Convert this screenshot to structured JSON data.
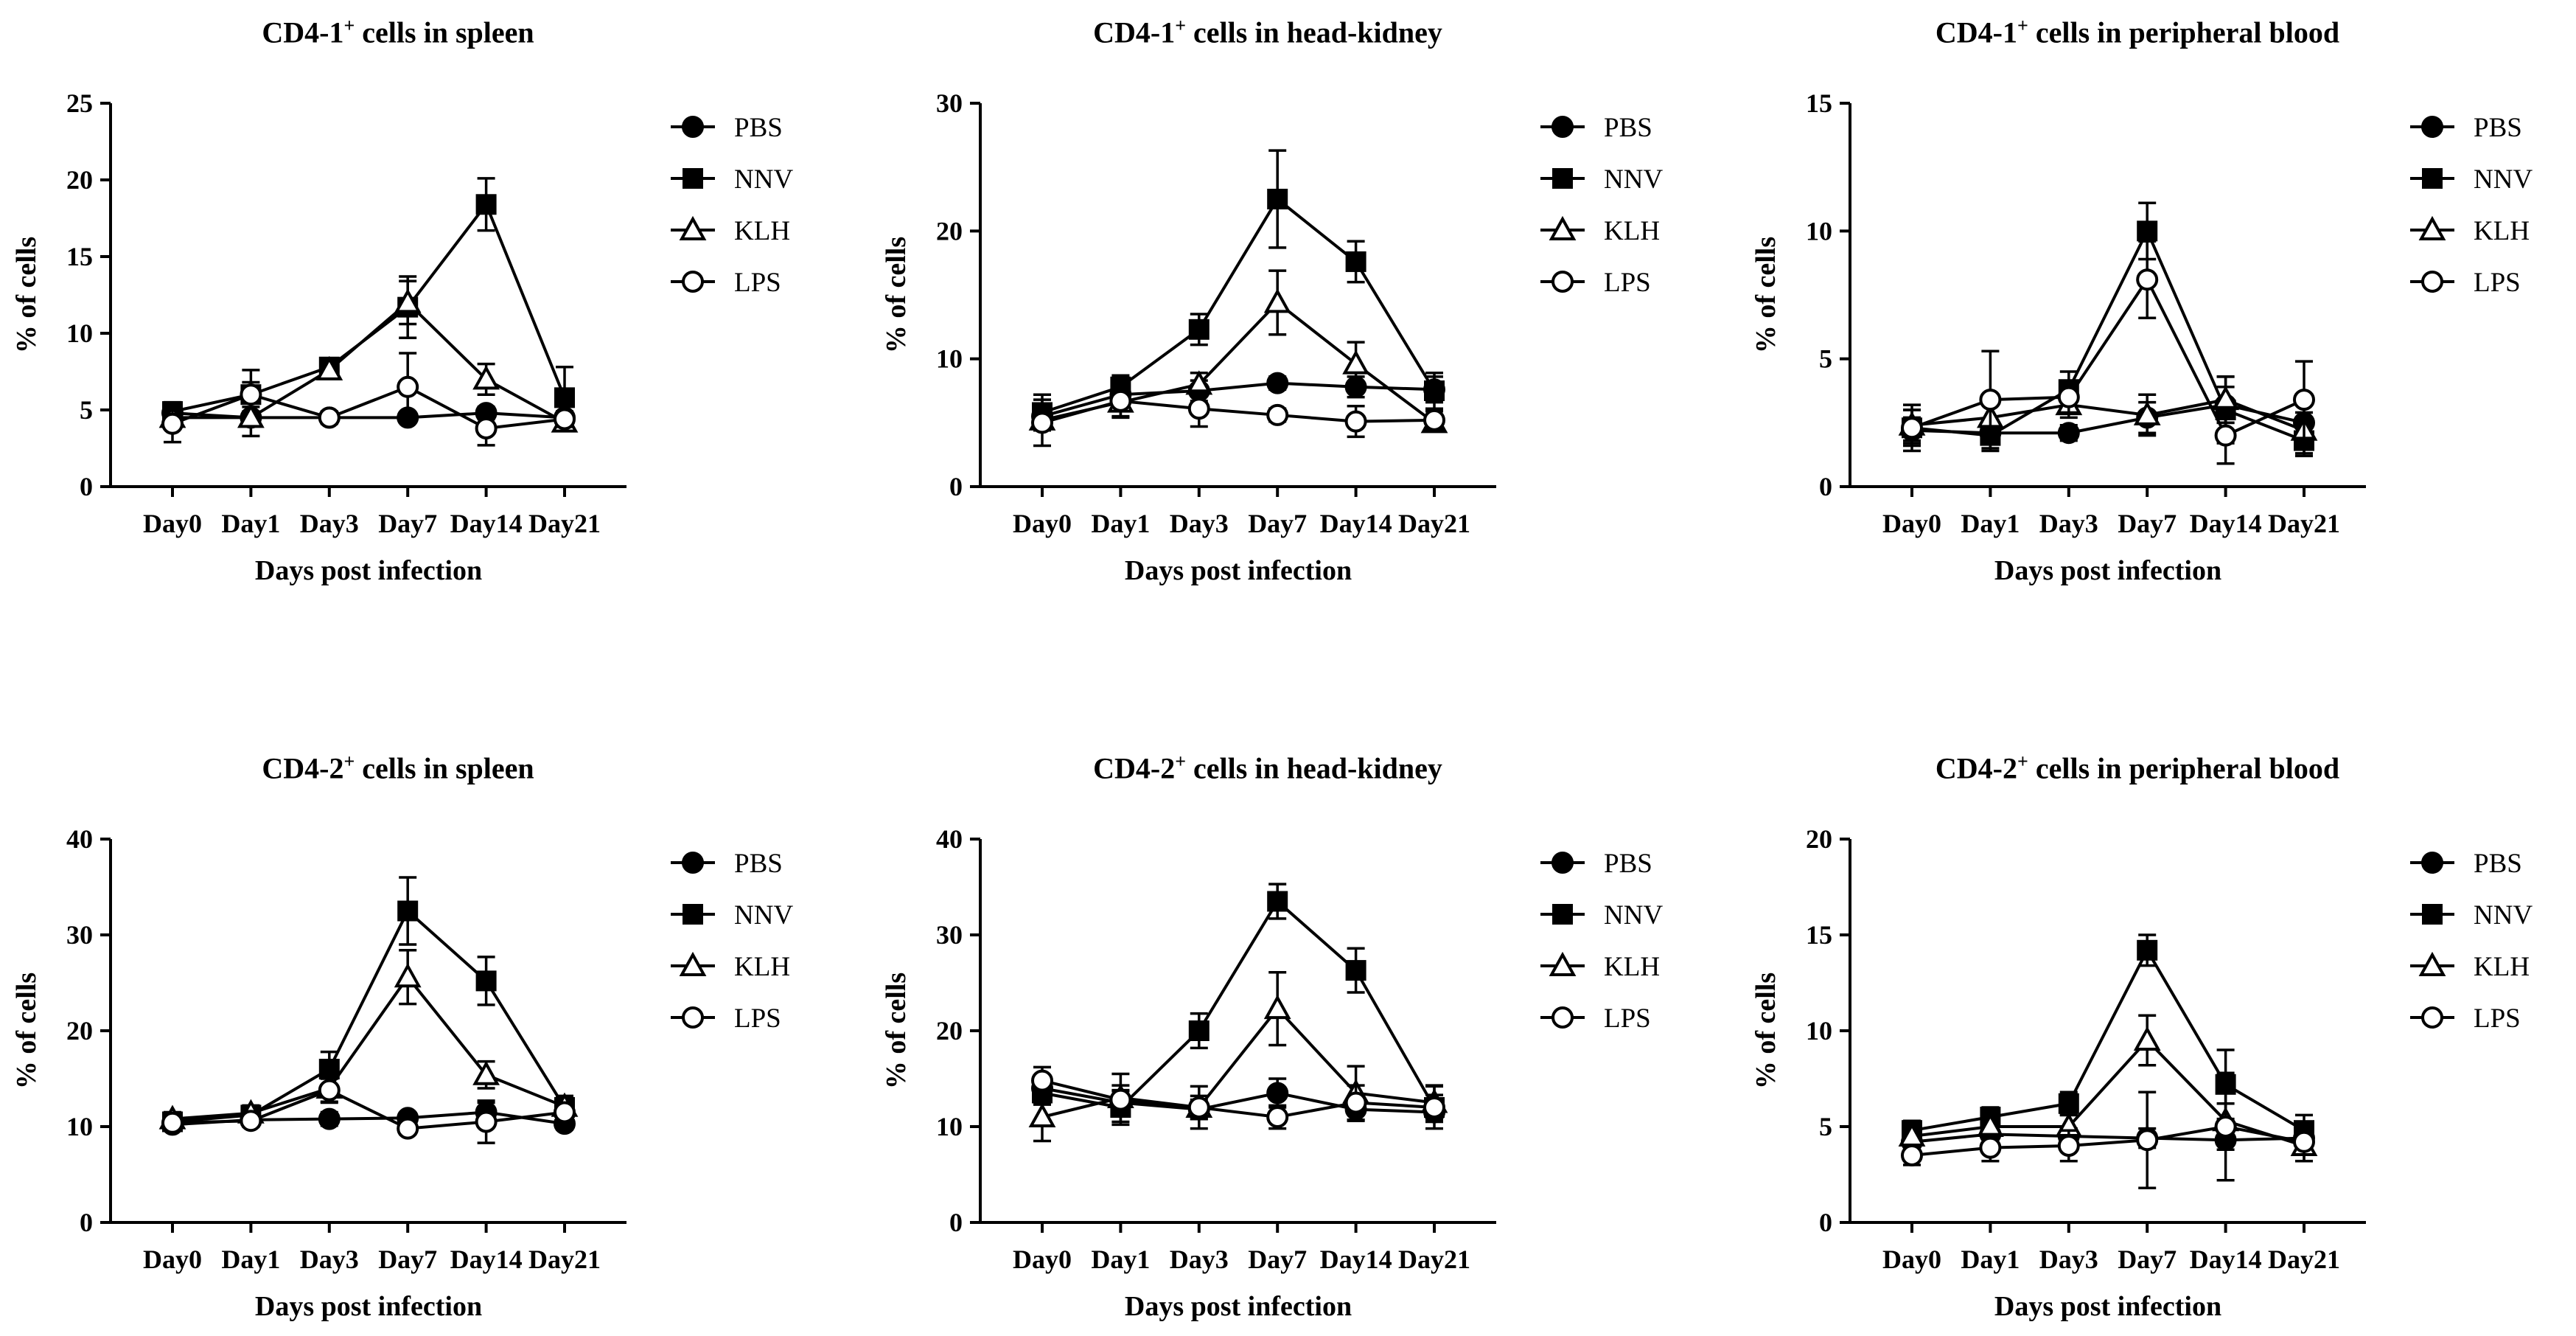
{
  "figure": {
    "legend_series": [
      "PBS",
      "NNV",
      "KLH",
      "LPS"
    ]
  },
  "chart_data": [
    {
      "type": "line",
      "title_main": "CD4-1",
      "title_sup": "+",
      "title_rest": " cells in spleen",
      "xlabel": "Days post infection",
      "ylabel": "% of cells",
      "categories": [
        "Day0",
        "Day1",
        "Day3",
        "Day7",
        "Day14",
        "Day21"
      ],
      "ylim": [
        0,
        25
      ],
      "yticks": [
        0,
        5,
        10,
        15,
        20,
        25
      ],
      "series": [
        {
          "name": "PBS",
          "marker": "circle-filled",
          "values": [
            4.8,
            4.5,
            4.5,
            4.5,
            4.8,
            4.5
          ],
          "errors": [
            0.5,
            0.4,
            0.3,
            0.3,
            0.4,
            0.4
          ]
        },
        {
          "name": "NNV",
          "marker": "square-filled",
          "values": [
            4.9,
            6.0,
            7.8,
            11.7,
            18.4,
            5.8
          ],
          "errors": [
            0.6,
            1.6,
            0.4,
            2.0,
            1.7,
            2.0
          ]
        },
        {
          "name": "KLH",
          "marker": "triangle-open",
          "values": [
            4.5,
            4.5,
            7.6,
            12.0,
            7.0,
            4.2
          ],
          "errors": [
            0.4,
            1.2,
            0.5,
            1.4,
            1.0,
            0.5
          ]
        },
        {
          "name": "LPS",
          "marker": "circle-open",
          "values": [
            4.1,
            6.0,
            4.5,
            6.5,
            3.8,
            4.4
          ],
          "errors": [
            1.2,
            0.8,
            0.4,
            2.2,
            1.1,
            0.5
          ]
        }
      ]
    },
    {
      "type": "line",
      "title_main": "CD4-1",
      "title_sup": "+",
      "title_rest": " cells in head-kidney",
      "xlabel": "Days post infection",
      "ylabel": "% of cells",
      "categories": [
        "Day0",
        "Day1",
        "Day3",
        "Day7",
        "Day14",
        "Day21"
      ],
      "ylim": [
        0,
        30
      ],
      "yticks": [
        0,
        10,
        20,
        30
      ],
      "series": [
        {
          "name": "PBS",
          "marker": "circle-filled",
          "values": [
            5.5,
            7.2,
            7.5,
            8.1,
            7.8,
            7.6
          ],
          "errors": [
            0.8,
            0.8,
            0.8,
            0.5,
            0.8,
            1.0
          ]
        },
        {
          "name": "NNV",
          "marker": "square-filled",
          "values": [
            5.8,
            7.8,
            12.3,
            22.5,
            17.6,
            7.5
          ],
          "errors": [
            1.4,
            0.9,
            1.2,
            3.8,
            1.6,
            1.4
          ]
        },
        {
          "name": "KLH",
          "marker": "triangle-open",
          "values": [
            5.2,
            6.6,
            8.0,
            14.4,
            9.6,
            5.0
          ],
          "errors": [
            0.8,
            1.2,
            0.9,
            2.5,
            1.7,
            0.6
          ]
        },
        {
          "name": "LPS",
          "marker": "circle-open",
          "values": [
            5.0,
            6.7,
            6.1,
            5.6,
            5.1,
            5.2
          ],
          "errors": [
            1.8,
            1.2,
            1.4,
            0.5,
            1.2,
            0.7
          ]
        }
      ]
    },
    {
      "type": "line",
      "title_main": "CD4-1",
      "title_sup": "+",
      "title_rest": " cells in peripheral blood",
      "xlabel": "Days post infection",
      "ylabel": "% of cells",
      "categories": [
        "Day0",
        "Day1",
        "Day3",
        "Day7",
        "Day14",
        "Day21"
      ],
      "ylim": [
        0,
        15
      ],
      "yticks": [
        0,
        5,
        10,
        15
      ],
      "series": [
        {
          "name": "PBS",
          "marker": "circle-filled",
          "values": [
            2.2,
            2.1,
            2.1,
            2.7,
            3.2,
            2.5
          ],
          "errors": [
            0.5,
            0.4,
            0.3,
            0.6,
            0.7,
            0.4
          ]
        },
        {
          "name": "NNV",
          "marker": "square-filled",
          "values": [
            2.3,
            2.0,
            3.8,
            10.0,
            3.0,
            1.8
          ],
          "errors": [
            0.9,
            0.6,
            0.7,
            1.1,
            1.3,
            0.5
          ]
        },
        {
          "name": "KLH",
          "marker": "triangle-open",
          "values": [
            2.4,
            2.7,
            3.2,
            2.8,
            3.4,
            2.2
          ],
          "errors": [
            0.6,
            0.9,
            0.5,
            0.8,
            0.9,
            1.0
          ]
        },
        {
          "name": "LPS",
          "marker": "circle-open",
          "values": [
            2.3,
            3.4,
            3.5,
            8.1,
            2.0,
            3.4
          ],
          "errors": [
            0.7,
            1.9,
            0.6,
            1.5,
            1.1,
            1.5
          ]
        }
      ]
    },
    {
      "type": "line",
      "title_main": "CD4-2",
      "title_sup": "+",
      "title_rest": " cells in spleen",
      "xlabel": "Days post infection",
      "ylabel": "% of cells",
      "categories": [
        "Day0",
        "Day1",
        "Day3",
        "Day7",
        "Day14",
        "Day21"
      ],
      "ylim": [
        0,
        40
      ],
      "yticks": [
        0,
        10,
        20,
        30,
        40
      ],
      "series": [
        {
          "name": "PBS",
          "marker": "circle-filled",
          "values": [
            10.2,
            10.7,
            10.8,
            10.9,
            11.5,
            10.3
          ],
          "errors": [
            0.6,
            0.5,
            0.7,
            0.5,
            1.0,
            0.6
          ]
        },
        {
          "name": "NNV",
          "marker": "square-filled",
          "values": [
            10.5,
            11.2,
            16.0,
            32.5,
            25.2,
            12.0
          ],
          "errors": [
            0.8,
            0.8,
            1.8,
            3.5,
            2.5,
            1.2
          ]
        },
        {
          "name": "KLH",
          "marker": "triangle-open",
          "values": [
            10.8,
            11.4,
            14.0,
            25.6,
            15.4,
            12.1
          ],
          "errors": [
            0.7,
            0.8,
            1.5,
            2.8,
            1.4,
            1.0
          ]
        },
        {
          "name": "LPS",
          "marker": "circle-open",
          "values": [
            10.4,
            10.6,
            13.8,
            9.8,
            10.5,
            11.5
          ],
          "errors": [
            0.6,
            0.6,
            1.2,
            0.6,
            2.2,
            0.8
          ]
        }
      ]
    },
    {
      "type": "line",
      "title_main": "CD4-2",
      "title_sup": "+",
      "title_rest": " cells in head-kidney",
      "xlabel": "Days post infection",
      "ylabel": "% of cells",
      "categories": [
        "Day0",
        "Day1",
        "Day3",
        "Day7",
        "Day14",
        "Day21"
      ],
      "ylim": [
        0,
        40
      ],
      "yticks": [
        0,
        10,
        20,
        30,
        40
      ],
      "series": [
        {
          "name": "PBS",
          "marker": "circle-filled",
          "values": [
            14.0,
            12.5,
            11.8,
            13.5,
            11.8,
            11.5
          ],
          "errors": [
            1.2,
            1.2,
            1.0,
            1.5,
            1.2,
            1.0
          ]
        },
        {
          "name": "NNV",
          "marker": "square-filled",
          "values": [
            13.5,
            12.0,
            20.0,
            33.5,
            26.3,
            12.0
          ],
          "errors": [
            1.2,
            1.8,
            1.8,
            1.8,
            2.3,
            2.2
          ]
        },
        {
          "name": "KLH",
          "marker": "triangle-open",
          "values": [
            11.0,
            13.0,
            12.0,
            22.3,
            13.5,
            12.5
          ],
          "errors": [
            2.5,
            2.5,
            2.2,
            3.8,
            2.8,
            1.8
          ]
        },
        {
          "name": "LPS",
          "marker": "circle-open",
          "values": [
            14.8,
            12.8,
            12.0,
            11.0,
            12.5,
            12.0
          ],
          "errors": [
            1.4,
            1.5,
            1.2,
            1.2,
            1.8,
            1.3
          ]
        }
      ]
    },
    {
      "type": "line",
      "title_main": "CD4-2",
      "title_sup": "+",
      "title_rest": " cells in peripheral blood",
      "xlabel": "Days post infection",
      "ylabel": "% of cells",
      "categories": [
        "Day0",
        "Day1",
        "Day3",
        "Day7",
        "Day14",
        "Day21"
      ],
      "ylim": [
        0,
        20
      ],
      "yticks": [
        0,
        5,
        10,
        15,
        20
      ],
      "series": [
        {
          "name": "PBS",
          "marker": "circle-filled",
          "values": [
            4.2,
            4.6,
            4.5,
            4.4,
            4.3,
            4.4
          ],
          "errors": [
            0.4,
            0.5,
            0.4,
            0.5,
            0.5,
            0.5
          ]
        },
        {
          "name": "NNV",
          "marker": "square-filled",
          "values": [
            4.8,
            5.5,
            6.2,
            14.2,
            7.2,
            4.8
          ],
          "errors": [
            0.5,
            0.5,
            0.6,
            0.8,
            1.8,
            0.8
          ]
        },
        {
          "name": "KLH",
          "marker": "triangle-open",
          "values": [
            4.5,
            5.0,
            5.0,
            9.5,
            5.3,
            4.0
          ],
          "errors": [
            0.5,
            0.6,
            0.6,
            1.3,
            0.9,
            0.8
          ]
        },
        {
          "name": "LPS",
          "marker": "circle-open",
          "values": [
            3.5,
            3.9,
            4.0,
            4.3,
            5.0,
            4.2
          ],
          "errors": [
            0.5,
            0.7,
            0.8,
            2.5,
            2.8,
            1.0
          ]
        }
      ]
    }
  ]
}
